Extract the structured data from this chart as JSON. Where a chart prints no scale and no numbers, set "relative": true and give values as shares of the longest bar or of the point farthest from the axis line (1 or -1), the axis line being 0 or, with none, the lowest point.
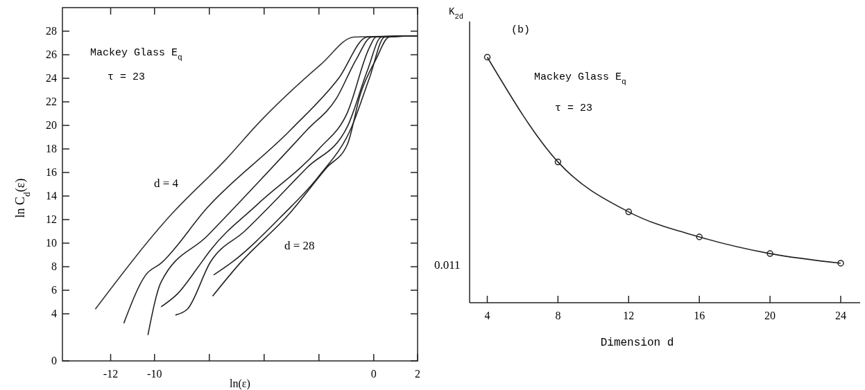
{
  "chart_data": [
    {
      "type": "line",
      "xlabel": "ln(ε)",
      "ylabel": "ln C$_{d}$(ε)",
      "xlim": [
        -14.2,
        2
      ],
      "ylim": [
        0,
        30
      ],
      "xticks": [
        -12,
        -10,
        {
          "value": -7.5,
          "label": null
        },
        {
          "value": -5,
          "label": null
        },
        {
          "value": -2.5,
          "label": null
        },
        0,
        2
      ],
      "yticks": [
        0,
        4,
        6,
        8,
        10,
        12,
        14,
        16,
        18,
        20,
        22,
        24,
        26,
        28
      ],
      "line_style": "solid",
      "annotations": [
        "Mackey Glass E$_{q}$",
        "τ = 23",
        "d = 4",
        "d = 28"
      ],
      "series": [
        {
          "color": "#333333",
          "x": [
            -12.7,
            -9.4,
            -6.7,
            -5.2,
            -2.4,
            -0.9,
            2
          ],
          "values": [
            4.4,
            12.1,
            17.2,
            20.3,
            25.2,
            27.5,
            27.6
          ]
        },
        {
          "color": "#222222",
          "x": [
            -11.4,
            -10.4,
            -9.7,
            -7.6,
            -3.8,
            -1.6,
            -0.3,
            2
          ],
          "values": [
            3.2,
            7.3,
            8.3,
            13.0,
            19.6,
            24.0,
            27.5,
            27.6
          ]
        },
        {
          "color": "#222222",
          "x": [
            -10.3,
            -9.7,
            -7.6,
            -5.3,
            -3.05,
            -1.7,
            -0.8,
            -0.1,
            2
          ],
          "values": [
            2.2,
            6.7,
            10.6,
            15.1,
            19.6,
            22.3,
            25.6,
            27.5,
            27.6
          ]
        },
        {
          "color": "#222222",
          "x": [
            -9.7,
            -8.95,
            -8.0,
            -7.45,
            -5.3,
            -2.5,
            -1.2,
            -0.2,
            0.1,
            2
          ],
          "values": [
            4.6,
            5.7,
            8.0,
            9.4,
            13.3,
            18.0,
            21.1,
            26.6,
            27.5,
            27.6
          ]
        },
        {
          "color": "#222222",
          "x": [
            -9.05,
            -8.5,
            -7.45,
            -5.9,
            -3.05,
            -1.2,
            -0.3,
            0.35,
            2
          ],
          "values": [
            3.9,
            4.4,
            8.4,
            11.0,
            16.4,
            19.9,
            24.6,
            27.5,
            27.6
          ]
        },
        {
          "color": "#222222",
          "x": [
            -7.3,
            -6.45,
            -4.2,
            -2.5,
            -1.0,
            -0.2,
            0.5,
            2
          ],
          "values": [
            7.3,
            8.4,
            12.3,
            15.7,
            19.9,
            24.0,
            27.5,
            27.6
          ]
        },
        {
          "color": "#222222",
          "x": [
            -7.35,
            -6.1,
            -3.85,
            -2.15,
            -1.2,
            -0.6,
            0.1,
            0.7,
            2
          ],
          "values": [
            5.5,
            8.3,
            12.5,
            16.4,
            18.4,
            22.7,
            25.6,
            27.5,
            27.6
          ]
        }
      ]
    },
    {
      "type": "line",
      "title": "(b)",
      "xlabel": "Dimension d",
      "ylabel": "K$_{2d}$",
      "relative": true,
      "xlim": [
        3,
        25.1
      ],
      "xticks": [
        4,
        8,
        12,
        16,
        20,
        24
      ],
      "marker": "circle",
      "line_style": "solid",
      "annotations": [
        "Mackey Glass E$_{q}$",
        "τ = 23",
        "0.011"
      ],
      "series": [
        {
          "color": "#222222",
          "x": [
            4,
            8,
            12,
            16,
            20,
            24
          ],
          "values": [
            1,
            0.573,
            0.37,
            0.268,
            0.2,
            0.161
          ]
        }
      ]
    }
  ]
}
